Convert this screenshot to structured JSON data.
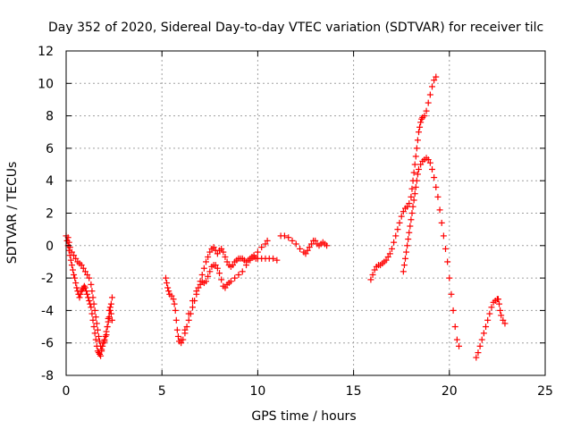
{
  "chart_data": {
    "type": "scatter",
    "title": "Day 352 of 2020, Sidereal Day-to-day VTEC variation (SDTVAR) for receiver tilc",
    "xlabel": "GPS time / hours",
    "ylabel": "SDTVAR / TECUs",
    "xlim": [
      0,
      25
    ],
    "ylim": [
      -8,
      12
    ],
    "xticks": [
      0,
      5,
      10,
      15,
      20,
      25
    ],
    "yticks": [
      -8,
      -6,
      -4,
      -2,
      0,
      2,
      4,
      6,
      8,
      10,
      12
    ],
    "xtick_labels": [
      "0",
      "5",
      "10",
      "15",
      "20",
      "25"
    ],
    "ytick_labels": [
      "-8",
      "-6",
      "-4",
      "-2",
      "0",
      "2",
      "4",
      "6",
      "8",
      "10",
      "12"
    ],
    "grid": true,
    "marker": "plus",
    "color": "#ff0000",
    "series": [
      {
        "points": [
          [
            0.0,
            0.6
          ],
          [
            0.05,
            0.3
          ],
          [
            0.1,
            0.0
          ],
          [
            0.15,
            -0.3
          ],
          [
            0.2,
            -0.6
          ],
          [
            0.25,
            -0.9
          ],
          [
            0.3,
            -1.2
          ],
          [
            0.35,
            -1.5
          ],
          [
            0.4,
            -1.8
          ],
          [
            0.45,
            -2.0
          ],
          [
            0.5,
            -2.3
          ],
          [
            0.55,
            -2.6
          ],
          [
            0.6,
            -2.8
          ],
          [
            0.65,
            -3.0
          ],
          [
            0.7,
            -3.2
          ],
          [
            0.75,
            -3.0
          ],
          [
            0.8,
            -2.8
          ],
          [
            0.85,
            -2.7
          ],
          [
            0.9,
            -2.6
          ],
          [
            0.95,
            -2.5
          ],
          [
            1.0,
            -2.6
          ],
          [
            1.05,
            -2.8
          ],
          [
            1.1,
            -3.0
          ],
          [
            1.15,
            -3.2
          ],
          [
            1.2,
            -3.4
          ],
          [
            1.25,
            -3.6
          ],
          [
            1.3,
            -3.8
          ],
          [
            1.35,
            -4.2
          ],
          [
            1.4,
            -4.6
          ],
          [
            1.45,
            -5.0
          ],
          [
            1.5,
            -5.4
          ],
          [
            1.55,
            -5.8
          ],
          [
            1.6,
            -6.2
          ],
          [
            1.65,
            -6.5
          ],
          [
            1.7,
            -6.6
          ],
          [
            1.75,
            -6.7
          ],
          [
            1.8,
            -6.8
          ],
          [
            1.85,
            -6.5
          ],
          [
            1.9,
            -6.2
          ],
          [
            1.95,
            -6.0
          ],
          [
            2.0,
            -5.8
          ],
          [
            2.05,
            -5.6
          ],
          [
            2.1,
            -5.3
          ],
          [
            2.15,
            -5.0
          ],
          [
            2.2,
            -4.7
          ],
          [
            2.25,
            -4.4
          ],
          [
            2.3,
            -4.0
          ],
          [
            2.35,
            -3.6
          ],
          [
            2.4,
            -3.2
          ]
        ]
      },
      {
        "points": [
          [
            0.1,
            0.5
          ],
          [
            0.15,
            0.2
          ],
          [
            0.2,
            -0.1
          ],
          [
            0.3,
            -0.4
          ],
          [
            0.4,
            -0.6
          ],
          [
            0.5,
            -0.8
          ],
          [
            0.6,
            -1.0
          ],
          [
            0.7,
            -1.1
          ],
          [
            0.8,
            -1.2
          ],
          [
            0.9,
            -1.4
          ],
          [
            1.0,
            -1.6
          ],
          [
            1.1,
            -1.8
          ],
          [
            1.2,
            -2.0
          ],
          [
            1.3,
            -2.4
          ],
          [
            1.35,
            -2.8
          ],
          [
            1.4,
            -3.2
          ],
          [
            1.45,
            -3.6
          ],
          [
            1.5,
            -4.0
          ],
          [
            1.55,
            -4.4
          ],
          [
            1.6,
            -4.8
          ],
          [
            1.65,
            -5.2
          ],
          [
            1.7,
            -5.6
          ],
          [
            1.75,
            -5.9
          ],
          [
            1.8,
            -6.2
          ],
          [
            1.85,
            -6.4
          ],
          [
            2.0,
            -5.9
          ],
          [
            2.1,
            -5.5
          ],
          [
            2.15,
            -5.0
          ],
          [
            2.2,
            -4.5
          ],
          [
            2.25,
            -4.0
          ],
          [
            2.3,
            -3.8
          ],
          [
            2.35,
            -4.2
          ],
          [
            2.4,
            -4.6
          ]
        ]
      },
      {
        "points": [
          [
            5.2,
            -2.0
          ],
          [
            5.25,
            -2.3
          ],
          [
            5.3,
            -2.6
          ],
          [
            5.35,
            -2.8
          ],
          [
            5.4,
            -3.0
          ],
          [
            5.5,
            -3.1
          ],
          [
            5.6,
            -3.3
          ],
          [
            5.65,
            -3.6
          ],
          [
            5.7,
            -4.0
          ],
          [
            5.75,
            -4.6
          ],
          [
            5.8,
            -5.2
          ],
          [
            5.85,
            -5.6
          ],
          [
            5.9,
            -5.9
          ],
          [
            6.0,
            -6.0
          ],
          [
            6.1,
            -5.8
          ],
          [
            6.2,
            -5.4
          ],
          [
            6.3,
            -5.0
          ],
          [
            6.4,
            -4.6
          ],
          [
            6.5,
            -4.2
          ],
          [
            6.6,
            -3.8
          ],
          [
            6.7,
            -3.4
          ],
          [
            6.8,
            -3.0
          ],
          [
            6.9,
            -2.6
          ],
          [
            7.0,
            -2.2
          ],
          [
            7.1,
            -1.8
          ],
          [
            7.2,
            -1.4
          ],
          [
            7.3,
            -1.0
          ],
          [
            7.4,
            -0.7
          ],
          [
            7.5,
            -0.4
          ],
          [
            7.6,
            -0.2
          ],
          [
            7.7,
            -0.1
          ],
          [
            7.8,
            -0.3
          ],
          [
            7.9,
            -0.5
          ],
          [
            8.0,
            -0.3
          ],
          [
            8.1,
            -0.2
          ],
          [
            8.2,
            -0.4
          ],
          [
            8.3,
            -0.7
          ],
          [
            8.4,
            -1.0
          ],
          [
            8.5,
            -1.2
          ],
          [
            8.6,
            -1.3
          ],
          [
            8.7,
            -1.2
          ],
          [
            8.8,
            -1.0
          ],
          [
            8.9,
            -0.9
          ],
          [
            9.0,
            -0.8
          ],
          [
            9.1,
            -0.8
          ],
          [
            9.2,
            -0.8
          ],
          [
            9.3,
            -0.9
          ],
          [
            9.4,
            -1.0
          ],
          [
            9.5,
            -0.9
          ],
          [
            9.6,
            -0.8
          ],
          [
            9.7,
            -0.7
          ],
          [
            9.8,
            -0.7
          ],
          [
            9.9,
            -0.8
          ],
          [
            10.0,
            -0.8
          ],
          [
            10.2,
            -0.8
          ],
          [
            10.4,
            -0.8
          ],
          [
            10.6,
            -0.8
          ],
          [
            10.8,
            -0.8
          ],
          [
            11.0,
            -0.9
          ]
        ]
      },
      {
        "points": [
          [
            6.0,
            -5.8
          ],
          [
            6.2,
            -5.2
          ],
          [
            6.4,
            -4.2
          ],
          [
            6.6,
            -3.4
          ],
          [
            6.8,
            -2.8
          ],
          [
            7.0,
            -2.4
          ],
          [
            7.1,
            -2.2
          ],
          [
            7.2,
            -2.3
          ],
          [
            7.3,
            -2.2
          ],
          [
            7.4,
            -1.9
          ],
          [
            7.5,
            -1.6
          ],
          [
            7.6,
            -1.3
          ],
          [
            7.7,
            -1.2
          ],
          [
            7.8,
            -1.2
          ],
          [
            7.9,
            -1.4
          ],
          [
            8.0,
            -1.7
          ],
          [
            8.1,
            -2.1
          ],
          [
            8.2,
            -2.5
          ],
          [
            8.3,
            -2.6
          ],
          [
            8.4,
            -2.4
          ],
          [
            8.5,
            -2.3
          ],
          [
            8.6,
            -2.2
          ],
          [
            8.8,
            -2.0
          ],
          [
            9.0,
            -1.8
          ],
          [
            9.2,
            -1.6
          ],
          [
            9.4,
            -1.2
          ],
          [
            9.6,
            -0.9
          ],
          [
            9.8,
            -0.6
          ],
          [
            10.0,
            -0.4
          ],
          [
            10.2,
            -0.1
          ],
          [
            10.4,
            0.1
          ],
          [
            10.5,
            0.3
          ]
        ]
      },
      {
        "points": [
          [
            11.2,
            0.6
          ],
          [
            11.4,
            0.6
          ],
          [
            11.6,
            0.5
          ],
          [
            11.8,
            0.3
          ],
          [
            12.0,
            0.1
          ],
          [
            12.2,
            -0.2
          ],
          [
            12.4,
            -0.4
          ],
          [
            12.5,
            -0.5
          ],
          [
            12.6,
            -0.3
          ],
          [
            12.7,
            -0.1
          ],
          [
            12.8,
            0.1
          ],
          [
            12.9,
            0.3
          ],
          [
            13.0,
            0.3
          ],
          [
            13.1,
            0.1
          ],
          [
            13.2,
            0.0
          ],
          [
            13.3,
            0.1
          ],
          [
            13.4,
            0.2
          ],
          [
            13.5,
            0.1
          ],
          [
            13.6,
            0.0
          ]
        ]
      },
      {
        "points": [
          [
            15.9,
            -2.1
          ],
          [
            16.0,
            -1.8
          ],
          [
            16.1,
            -1.5
          ],
          [
            16.2,
            -1.3
          ],
          [
            16.3,
            -1.2
          ],
          [
            16.4,
            -1.2
          ],
          [
            16.5,
            -1.1
          ],
          [
            16.6,
            -1.0
          ],
          [
            16.7,
            -0.9
          ],
          [
            16.8,
            -0.7
          ],
          [
            16.9,
            -0.5
          ],
          [
            17.0,
            -0.2
          ],
          [
            17.1,
            0.2
          ],
          [
            17.2,
            0.6
          ],
          [
            17.3,
            1.0
          ],
          [
            17.4,
            1.4
          ],
          [
            17.5,
            1.8
          ],
          [
            17.6,
            2.1
          ],
          [
            17.7,
            2.3
          ],
          [
            17.8,
            2.4
          ],
          [
            17.9,
            2.6
          ],
          [
            18.0,
            3.0
          ],
          [
            18.05,
            3.5
          ],
          [
            18.1,
            4.0
          ],
          [
            18.15,
            4.5
          ],
          [
            18.2,
            5.0
          ],
          [
            18.25,
            5.5
          ],
          [
            18.3,
            6.0
          ],
          [
            18.35,
            6.5
          ],
          [
            18.4,
            7.0
          ],
          [
            18.45,
            7.3
          ],
          [
            18.5,
            7.6
          ],
          [
            18.55,
            7.8
          ],
          [
            18.6,
            7.9
          ],
          [
            18.7,
            8.0
          ],
          [
            18.8,
            8.3
          ],
          [
            18.9,
            8.8
          ],
          [
            19.0,
            9.3
          ],
          [
            19.1,
            9.8
          ],
          [
            19.2,
            10.2
          ],
          [
            19.3,
            10.4
          ]
        ]
      },
      {
        "points": [
          [
            17.6,
            -1.6
          ],
          [
            17.65,
            -1.2
          ],
          [
            17.7,
            -0.8
          ],
          [
            17.75,
            -0.4
          ],
          [
            17.8,
            0.0
          ],
          [
            17.85,
            0.4
          ],
          [
            17.9,
            0.8
          ],
          [
            17.95,
            1.2
          ],
          [
            18.0,
            1.6
          ],
          [
            18.05,
            2.0
          ],
          [
            18.1,
            2.4
          ],
          [
            18.15,
            2.8
          ],
          [
            18.2,
            3.2
          ],
          [
            18.25,
            3.6
          ],
          [
            18.3,
            4.0
          ],
          [
            18.35,
            4.4
          ],
          [
            18.4,
            4.7
          ],
          [
            18.5,
            5.0
          ],
          [
            18.6,
            5.2
          ],
          [
            18.7,
            5.3
          ],
          [
            18.8,
            5.4
          ],
          [
            18.9,
            5.3
          ],
          [
            19.0,
            5.1
          ],
          [
            19.1,
            4.7
          ],
          [
            19.2,
            4.2
          ],
          [
            19.3,
            3.6
          ],
          [
            19.4,
            3.0
          ],
          [
            19.5,
            2.2
          ],
          [
            19.6,
            1.4
          ],
          [
            19.7,
            0.6
          ],
          [
            19.8,
            -0.2
          ],
          [
            19.9,
            -1.0
          ],
          [
            20.0,
            -2.0
          ],
          [
            20.1,
            -3.0
          ],
          [
            20.2,
            -4.0
          ],
          [
            20.3,
            -5.0
          ],
          [
            20.4,
            -5.8
          ],
          [
            20.5,
            -6.2
          ]
        ]
      },
      {
        "points": [
          [
            21.4,
            -6.9
          ],
          [
            21.5,
            -6.6
          ],
          [
            21.6,
            -6.2
          ],
          [
            21.7,
            -5.8
          ],
          [
            21.8,
            -5.4
          ],
          [
            21.9,
            -5.0
          ],
          [
            22.0,
            -4.6
          ],
          [
            22.1,
            -4.2
          ],
          [
            22.2,
            -3.8
          ],
          [
            22.3,
            -3.5
          ],
          [
            22.4,
            -3.4
          ],
          [
            22.5,
            -3.3
          ],
          [
            22.55,
            -3.3
          ],
          [
            22.6,
            -3.6
          ],
          [
            22.65,
            -4.0
          ],
          [
            22.7,
            -4.3
          ],
          [
            22.8,
            -4.6
          ],
          [
            22.9,
            -4.8
          ]
        ]
      }
    ]
  }
}
